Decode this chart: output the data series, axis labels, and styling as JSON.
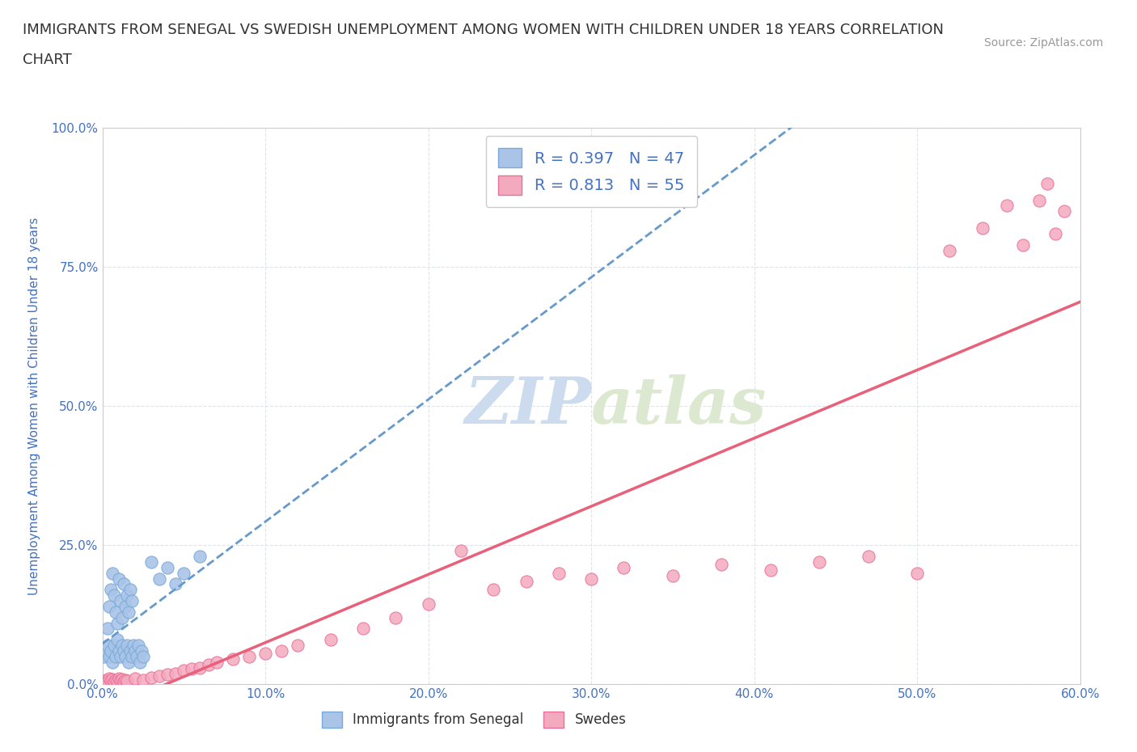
{
  "title_line1": "IMMIGRANTS FROM SENEGAL VS SWEDISH UNEMPLOYMENT AMONG WOMEN WITH CHILDREN UNDER 18 YEARS CORRELATION",
  "title_line2": "CHART",
  "source_text": "Source: ZipAtlas.com",
  "ylabel": "Unemployment Among Women with Children Under 18 years",
  "xlim": [
    0.0,
    0.6
  ],
  "ylim": [
    0.0,
    1.0
  ],
  "xticks": [
    0.0,
    0.1,
    0.2,
    0.3,
    0.4,
    0.5,
    0.6
  ],
  "xticklabels": [
    "0.0%",
    "10.0%",
    "20.0%",
    "30.0%",
    "40.0%",
    "50.0%",
    "60.0%"
  ],
  "yticks": [
    0.0,
    0.25,
    0.5,
    0.75,
    1.0
  ],
  "yticklabels": [
    "0.0%",
    "25.0%",
    "50.0%",
    "75.0%",
    "100.0%"
  ],
  "blue_R": 0.397,
  "blue_N": 47,
  "pink_R": 0.813,
  "pink_N": 55,
  "blue_color": "#aac4e8",
  "pink_color": "#f4aabe",
  "blue_edge": "#7aaad8",
  "pink_edge": "#e8709a",
  "trendline_blue_color": "#6699cc",
  "trendline_pink_color": "#e8607a",
  "watermark_color": "#ccdcee",
  "legend_blue_label": "Immigrants from Senegal",
  "legend_pink_label": "Swedes",
  "blue_scatter_x": [
    0.001,
    0.002,
    0.003,
    0.004,
    0.005,
    0.006,
    0.007,
    0.008,
    0.009,
    0.01,
    0.011,
    0.012,
    0.013,
    0.014,
    0.015,
    0.016,
    0.017,
    0.018,
    0.019,
    0.02,
    0.021,
    0.022,
    0.023,
    0.024,
    0.025,
    0.003,
    0.004,
    0.005,
    0.006,
    0.007,
    0.008,
    0.009,
    0.01,
    0.011,
    0.012,
    0.013,
    0.014,
    0.015,
    0.016,
    0.017,
    0.018,
    0.03,
    0.035,
    0.04,
    0.045,
    0.05,
    0.06
  ],
  "blue_scatter_y": [
    0.05,
    0.06,
    0.07,
    0.05,
    0.06,
    0.04,
    0.07,
    0.05,
    0.08,
    0.06,
    0.05,
    0.07,
    0.06,
    0.05,
    0.07,
    0.04,
    0.06,
    0.05,
    0.07,
    0.06,
    0.05,
    0.07,
    0.04,
    0.06,
    0.05,
    0.1,
    0.14,
    0.17,
    0.2,
    0.16,
    0.13,
    0.11,
    0.19,
    0.15,
    0.12,
    0.18,
    0.14,
    0.16,
    0.13,
    0.17,
    0.15,
    0.22,
    0.19,
    0.21,
    0.18,
    0.2,
    0.23
  ],
  "pink_scatter_x": [
    0.001,
    0.002,
    0.003,
    0.004,
    0.005,
    0.006,
    0.007,
    0.008,
    0.009,
    0.01,
    0.011,
    0.012,
    0.013,
    0.014,
    0.015,
    0.02,
    0.025,
    0.03,
    0.035,
    0.04,
    0.045,
    0.05,
    0.055,
    0.06,
    0.065,
    0.07,
    0.08,
    0.09,
    0.1,
    0.11,
    0.12,
    0.14,
    0.16,
    0.18,
    0.2,
    0.22,
    0.24,
    0.26,
    0.28,
    0.3,
    0.32,
    0.35,
    0.38,
    0.41,
    0.44,
    0.47,
    0.5,
    0.52,
    0.54,
    0.555,
    0.565,
    0.575,
    0.58,
    0.585,
    0.59
  ],
  "pink_scatter_y": [
    0.005,
    0.008,
    0.006,
    0.01,
    0.007,
    0.009,
    0.005,
    0.008,
    0.006,
    0.01,
    0.007,
    0.009,
    0.005,
    0.008,
    0.006,
    0.01,
    0.008,
    0.012,
    0.015,
    0.018,
    0.02,
    0.025,
    0.028,
    0.03,
    0.035,
    0.04,
    0.045,
    0.05,
    0.055,
    0.06,
    0.07,
    0.08,
    0.1,
    0.12,
    0.145,
    0.24,
    0.17,
    0.185,
    0.2,
    0.19,
    0.21,
    0.195,
    0.215,
    0.205,
    0.22,
    0.23,
    0.2,
    0.78,
    0.82,
    0.86,
    0.79,
    0.87,
    0.9,
    0.81,
    0.85
  ],
  "background_color": "#ffffff",
  "grid_color": "#e0e4e8",
  "title_color": "#333333",
  "title_fontsize": 13,
  "axis_label_color": "#4472c4",
  "tick_label_color": "#4472c4",
  "legend_R_N_color": "#4472c4"
}
